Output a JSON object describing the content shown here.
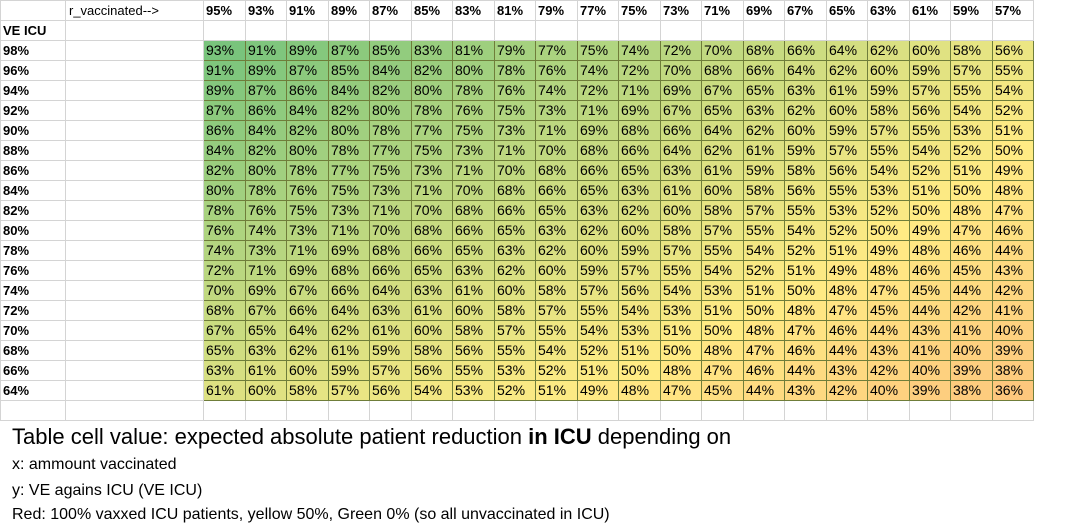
{
  "sheet": {
    "corner_row_label": "VE ICU",
    "x_axis_label": "r_vaccinated-->",
    "columns": [
      "95%",
      "93%",
      "91%",
      "89%",
      "87%",
      "85%",
      "83%",
      "81%",
      "79%",
      "77%",
      "75%",
      "73%",
      "71%",
      "69%",
      "67%",
      "65%",
      "63%",
      "61%",
      "59%",
      "57%"
    ],
    "rows": [
      {
        "label": "98%",
        "values": [
          "93%",
          "91%",
          "89%",
          "87%",
          "85%",
          "83%",
          "81%",
          "79%",
          "77%",
          "75%",
          "74%",
          "72%",
          "70%",
          "68%",
          "66%",
          "64%",
          "62%",
          "60%",
          "58%",
          "56%"
        ]
      },
      {
        "label": "96%",
        "values": [
          "91%",
          "89%",
          "87%",
          "85%",
          "84%",
          "82%",
          "80%",
          "78%",
          "76%",
          "74%",
          "72%",
          "70%",
          "68%",
          "66%",
          "64%",
          "62%",
          "60%",
          "59%",
          "57%",
          "55%"
        ]
      },
      {
        "label": "94%",
        "values": [
          "89%",
          "87%",
          "86%",
          "84%",
          "82%",
          "80%",
          "78%",
          "76%",
          "74%",
          "72%",
          "71%",
          "69%",
          "67%",
          "65%",
          "63%",
          "61%",
          "59%",
          "57%",
          "55%",
          "54%"
        ]
      },
      {
        "label": "92%",
        "values": [
          "87%",
          "86%",
          "84%",
          "82%",
          "80%",
          "78%",
          "76%",
          "75%",
          "73%",
          "71%",
          "69%",
          "67%",
          "65%",
          "63%",
          "62%",
          "60%",
          "58%",
          "56%",
          "54%",
          "52%"
        ]
      },
      {
        "label": "90%",
        "values": [
          "86%",
          "84%",
          "82%",
          "80%",
          "78%",
          "77%",
          "75%",
          "73%",
          "71%",
          "69%",
          "68%",
          "66%",
          "64%",
          "62%",
          "60%",
          "59%",
          "57%",
          "55%",
          "53%",
          "51%"
        ]
      },
      {
        "label": "88%",
        "values": [
          "84%",
          "82%",
          "80%",
          "78%",
          "77%",
          "75%",
          "73%",
          "71%",
          "70%",
          "68%",
          "66%",
          "64%",
          "62%",
          "61%",
          "59%",
          "57%",
          "55%",
          "54%",
          "52%",
          "50%"
        ]
      },
      {
        "label": "86%",
        "values": [
          "82%",
          "80%",
          "78%",
          "77%",
          "75%",
          "73%",
          "71%",
          "70%",
          "68%",
          "66%",
          "65%",
          "63%",
          "61%",
          "59%",
          "58%",
          "56%",
          "54%",
          "52%",
          "51%",
          "49%"
        ]
      },
      {
        "label": "84%",
        "values": [
          "80%",
          "78%",
          "76%",
          "75%",
          "73%",
          "71%",
          "70%",
          "68%",
          "66%",
          "65%",
          "63%",
          "61%",
          "60%",
          "58%",
          "56%",
          "55%",
          "53%",
          "51%",
          "50%",
          "48%"
        ]
      },
      {
        "label": "82%",
        "values": [
          "78%",
          "76%",
          "75%",
          "73%",
          "71%",
          "70%",
          "68%",
          "66%",
          "65%",
          "63%",
          "62%",
          "60%",
          "58%",
          "57%",
          "55%",
          "53%",
          "52%",
          "50%",
          "48%",
          "47%"
        ]
      },
      {
        "label": "80%",
        "values": [
          "76%",
          "74%",
          "73%",
          "71%",
          "70%",
          "68%",
          "66%",
          "65%",
          "63%",
          "62%",
          "60%",
          "58%",
          "57%",
          "55%",
          "54%",
          "52%",
          "50%",
          "49%",
          "47%",
          "46%"
        ]
      },
      {
        "label": "78%",
        "values": [
          "74%",
          "73%",
          "71%",
          "69%",
          "68%",
          "66%",
          "65%",
          "63%",
          "62%",
          "60%",
          "59%",
          "57%",
          "55%",
          "54%",
          "52%",
          "51%",
          "49%",
          "48%",
          "46%",
          "44%"
        ]
      },
      {
        "label": "76%",
        "values": [
          "72%",
          "71%",
          "69%",
          "68%",
          "66%",
          "65%",
          "63%",
          "62%",
          "60%",
          "59%",
          "57%",
          "55%",
          "54%",
          "52%",
          "51%",
          "49%",
          "48%",
          "46%",
          "45%",
          "43%"
        ]
      },
      {
        "label": "74%",
        "values": [
          "70%",
          "69%",
          "67%",
          "66%",
          "64%",
          "63%",
          "61%",
          "60%",
          "58%",
          "57%",
          "56%",
          "54%",
          "53%",
          "51%",
          "50%",
          "48%",
          "47%",
          "45%",
          "44%",
          "42%"
        ]
      },
      {
        "label": "72%",
        "values": [
          "68%",
          "67%",
          "66%",
          "64%",
          "63%",
          "61%",
          "60%",
          "58%",
          "57%",
          "55%",
          "54%",
          "53%",
          "51%",
          "50%",
          "48%",
          "47%",
          "45%",
          "44%",
          "42%",
          "41%"
        ]
      },
      {
        "label": "70%",
        "values": [
          "67%",
          "65%",
          "64%",
          "62%",
          "61%",
          "60%",
          "58%",
          "57%",
          "55%",
          "54%",
          "53%",
          "51%",
          "50%",
          "48%",
          "47%",
          "46%",
          "44%",
          "43%",
          "41%",
          "40%"
        ]
      },
      {
        "label": "68%",
        "values": [
          "65%",
          "63%",
          "62%",
          "61%",
          "59%",
          "58%",
          "56%",
          "55%",
          "54%",
          "52%",
          "51%",
          "50%",
          "48%",
          "47%",
          "46%",
          "44%",
          "43%",
          "41%",
          "40%",
          "39%"
        ]
      },
      {
        "label": "66%",
        "values": [
          "63%",
          "61%",
          "60%",
          "59%",
          "57%",
          "56%",
          "55%",
          "53%",
          "52%",
          "51%",
          "50%",
          "48%",
          "47%",
          "46%",
          "44%",
          "43%",
          "42%",
          "40%",
          "39%",
          "38%"
        ]
      },
      {
        "label": "64%",
        "values": [
          "61%",
          "60%",
          "58%",
          "57%",
          "56%",
          "54%",
          "53%",
          "52%",
          "51%",
          "49%",
          "48%",
          "47%",
          "45%",
          "44%",
          "43%",
          "42%",
          "40%",
          "39%",
          "38%",
          "36%"
        ]
      }
    ]
  },
  "caption": {
    "main_prefix": "Table cell value: expected absolute patient reduction ",
    "main_bold": "in ICU",
    "main_suffix": " depending on",
    "line1": "x: ammount vaccinated",
    "line2": "y: VE agains ICU (VE ICU)",
    "line3": "Red: 100% vaxxed ICU patients, yellow 50%, Green 0% (so all unvaccinated in ICU)"
  },
  "colors": {
    "green": "#63be7b",
    "yellow": "#ffeb84",
    "red": "#f8696b",
    "cell_border": "#6f7d3a",
    "gridline": "#d4d4d4"
  }
}
